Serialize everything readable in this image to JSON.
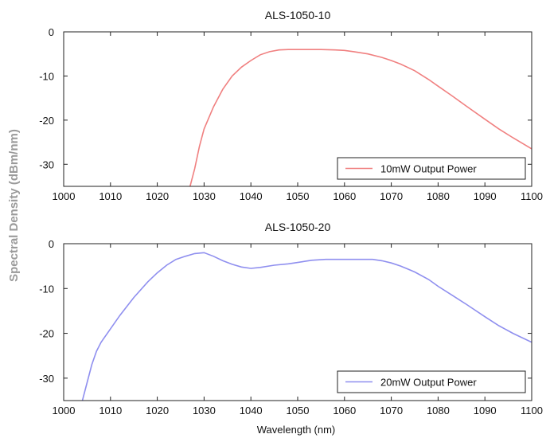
{
  "figure": {
    "ylabel": "Spectral Density (dBm/nm)",
    "xlabel": "Wavelength (nm)"
  },
  "chart_data": [
    {
      "type": "line",
      "title": "ALS-1050-10",
      "xlabel": "",
      "ylabel": "Spectral Density (dBm/nm)",
      "xlim": [
        1000,
        1100
      ],
      "ylim": [
        -35,
        0
      ],
      "xticks": [
        "1000",
        "1010",
        "1020",
        "1030",
        "1040",
        "1050",
        "1060",
        "1070",
        "1080",
        "1090",
        "1100"
      ],
      "yticks": [
        "0",
        "-10",
        "-20",
        "-30"
      ],
      "grid": false,
      "legend_position": "bottom-right",
      "series": [
        {
          "name": "10mW Output Power",
          "color": "#f08080",
          "x": [
            1027,
            1028,
            1029,
            1030,
            1032,
            1034,
            1036,
            1038,
            1040,
            1042,
            1044,
            1046,
            1048,
            1050,
            1052,
            1055,
            1058,
            1060,
            1062,
            1065,
            1068,
            1070,
            1072,
            1075,
            1078,
            1080,
            1083,
            1086,
            1090,
            1093,
            1096,
            1100
          ],
          "y": [
            -35,
            -31,
            -26,
            -22,
            -17,
            -13,
            -10,
            -8,
            -6.5,
            -5.2,
            -4.5,
            -4.1,
            -4.0,
            -4.0,
            -4.0,
            -4.0,
            -4.1,
            -4.2,
            -4.5,
            -5.0,
            -5.8,
            -6.5,
            -7.3,
            -8.8,
            -10.8,
            -12.3,
            -14.5,
            -16.8,
            -19.8,
            -22.0,
            -24.0,
            -26.5
          ]
        }
      ]
    },
    {
      "type": "line",
      "title": "ALS-1050-20",
      "xlabel": "Wavelength (nm)",
      "ylabel": "Spectral Density (dBm/nm)",
      "xlim": [
        1000,
        1100
      ],
      "ylim": [
        -35,
        0
      ],
      "xticks": [
        "1000",
        "1010",
        "1020",
        "1030",
        "1040",
        "1050",
        "1060",
        "1070",
        "1080",
        "1090",
        "1100"
      ],
      "yticks": [
        "0",
        "-10",
        "-20",
        "-30"
      ],
      "grid": false,
      "legend_position": "bottom-right",
      "series": [
        {
          "name": "20mW Output Power",
          "color": "#8f8fef",
          "x": [
            1004,
            1005,
            1006,
            1007,
            1008,
            1010,
            1012,
            1015,
            1018,
            1020,
            1022,
            1024,
            1026,
            1028,
            1030,
            1032,
            1034,
            1036,
            1038,
            1040,
            1042,
            1045,
            1048,
            1050,
            1053,
            1056,
            1060,
            1063,
            1066,
            1068,
            1070,
            1072,
            1075,
            1078,
            1080,
            1083,
            1086,
            1090,
            1093,
            1096,
            1100
          ],
          "y": [
            -35,
            -31,
            -27,
            -24,
            -22,
            -19,
            -16,
            -12,
            -8.5,
            -6.5,
            -4.8,
            -3.5,
            -2.8,
            -2.2,
            -2.0,
            -2.8,
            -3.8,
            -4.6,
            -5.2,
            -5.5,
            -5.3,
            -4.8,
            -4.5,
            -4.2,
            -3.7,
            -3.5,
            -3.5,
            -3.5,
            -3.5,
            -3.8,
            -4.3,
            -5.0,
            -6.3,
            -8.0,
            -9.5,
            -11.5,
            -13.5,
            -16.3,
            -18.3,
            -20.0,
            -22.0
          ]
        }
      ]
    }
  ]
}
